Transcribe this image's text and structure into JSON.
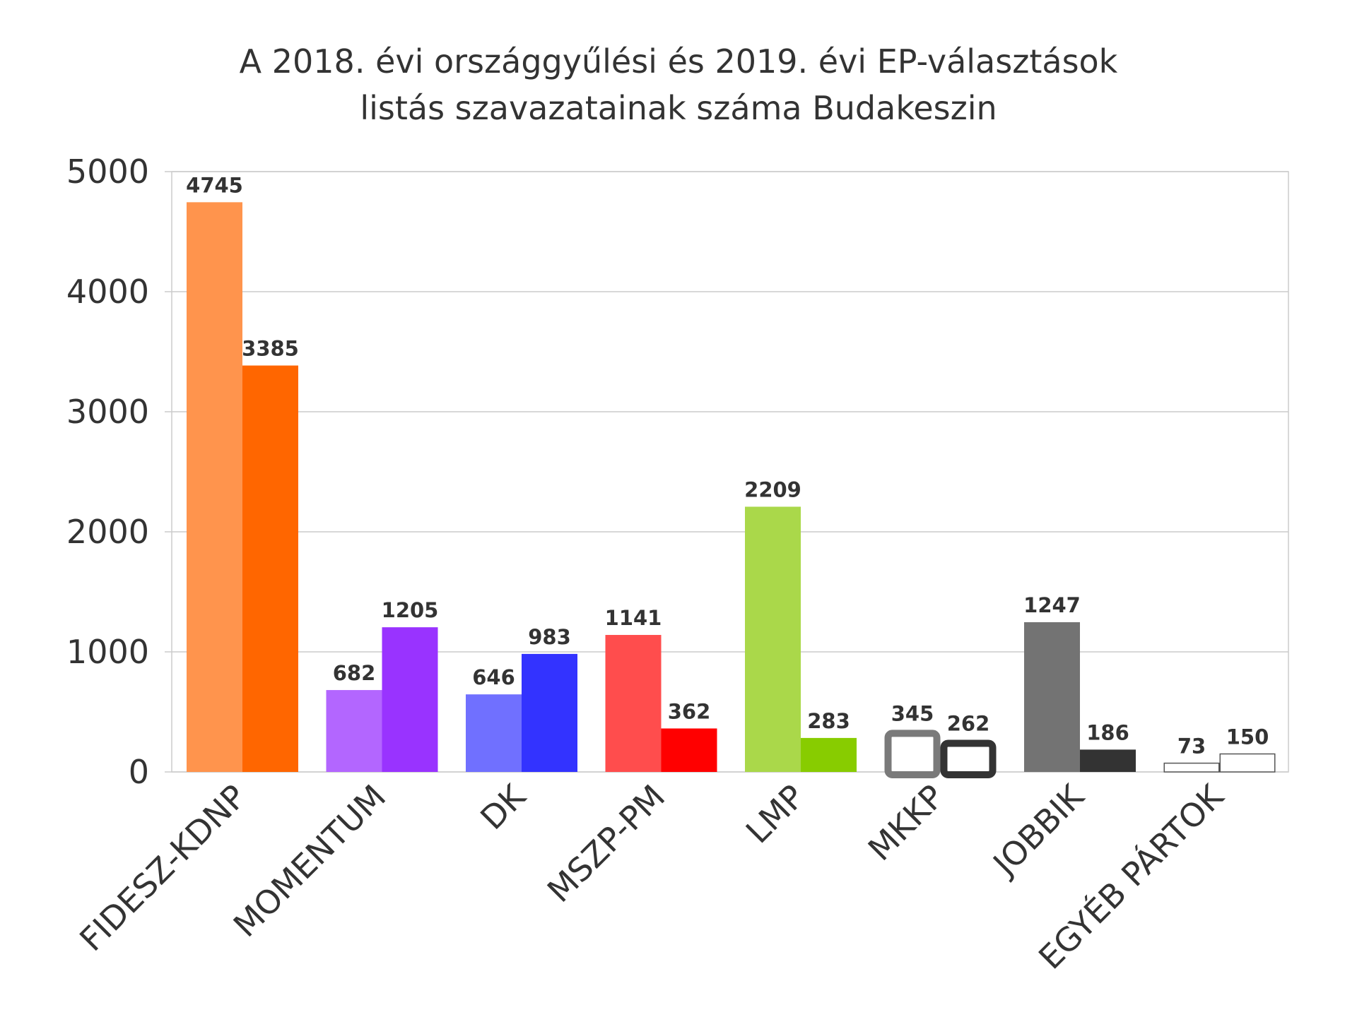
{
  "chart_data": {
    "type": "bar",
    "title_lines": [
      "A 2018. évi országgyűlési és 2019. évi EP-választások",
      "listás szavazatainak száma Budakeszin"
    ],
    "xlabel": "",
    "ylabel": "",
    "ylim": [
      0,
      5000
    ],
    "yticks": [
      0,
      1000,
      2000,
      3000,
      4000,
      5000
    ],
    "grid": true,
    "legend": "none",
    "categories": [
      "FIDESZ-KDNP",
      "MOMENTUM",
      "DK",
      "MSZP-PM",
      "LMP",
      "MKKP",
      "JOBBIK",
      "EGYÉB PÁRTOK"
    ],
    "series": [
      {
        "values": [
          4745,
          682,
          646,
          1141,
          2209,
          345,
          1247,
          73
        ]
      },
      {
        "values": [
          3385,
          1205,
          983,
          362,
          283,
          262,
          186,
          150
        ]
      }
    ],
    "bar_styles": [
      [
        {
          "fill": "#ff944d"
        },
        {
          "fill": "#ff6600"
        }
      ],
      [
        {
          "fill": "#b366ff"
        },
        {
          "fill": "#9933ff"
        }
      ],
      [
        {
          "fill": "#7070ff"
        },
        {
          "fill": "#3333ff"
        }
      ],
      [
        {
          "fill": "#ff4d4d"
        },
        {
          "fill": "#ff0000"
        }
      ],
      [
        {
          "fill": "#aad84a"
        },
        {
          "fill": "#88cc00"
        }
      ],
      [
        {
          "fill": "#ffffff",
          "stroke": "#7a7a7a",
          "outline": "thick"
        },
        {
          "fill": "#ffffff",
          "stroke": "#333333",
          "outline": "thick"
        }
      ],
      [
        {
          "fill": "#737373"
        },
        {
          "fill": "#333333"
        }
      ],
      [
        {
          "fill": "#ffffff",
          "stroke": "#555555",
          "outline": "thin"
        },
        {
          "fill": "#ffffff",
          "stroke": "#555555",
          "outline": "thin"
        }
      ]
    ],
    "colors": {
      "grid": "#cccccc",
      "text": "#333333"
    }
  }
}
